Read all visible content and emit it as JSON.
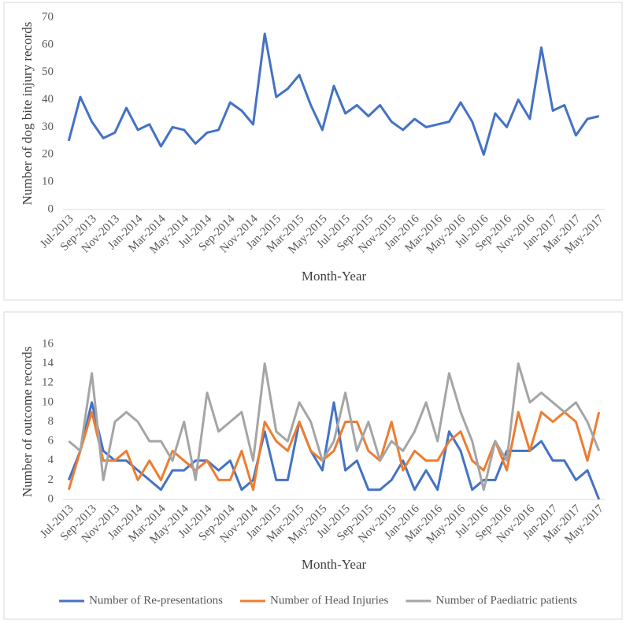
{
  "chart_data": [
    {
      "type": "line",
      "y_label": "Number of dog bite injury records",
      "x_label": "Month-Year",
      "categories": [
        "Jul-2013",
        null,
        "Sep-2013",
        null,
        "Nov-2013",
        null,
        "Jan-2014",
        null,
        "Mar-2014",
        null,
        "May-2014",
        null,
        "Jul-2014",
        null,
        "Sep-2014",
        null,
        "Nov-2014",
        null,
        "Jan-2015",
        null,
        "Mar-2015",
        null,
        "May-2015",
        null,
        "Jul-2015",
        null,
        "Sep-2015",
        null,
        "Nov-2015",
        null,
        "Jan-2016",
        null,
        "Mar-2016",
        null,
        "May-2016",
        null,
        "Jul-2016",
        null,
        "Sep-2016",
        null,
        "Nov-2016",
        null,
        "Jan-2017",
        null,
        "Mar-2017",
        null,
        "May-2017"
      ],
      "series": [
        {
          "color": "#4472c4",
          "values": [
            25,
            41,
            32,
            26,
            28,
            37,
            29,
            31,
            23,
            30,
            29,
            24,
            28,
            29,
            39,
            36,
            31,
            64,
            41,
            44,
            49,
            38,
            29,
            45,
            35,
            38,
            34,
            38,
            32,
            29,
            33,
            30,
            31,
            32,
            39,
            32,
            20,
            35,
            30,
            40,
            33,
            59,
            36,
            38,
            27,
            33,
            34
          ]
        }
      ],
      "ylim": [
        0,
        70
      ],
      "yticks": [
        0,
        10,
        20,
        30,
        40,
        50,
        60,
        70
      ],
      "grid": false
    },
    {
      "type": "line",
      "y_label": "Number of outcome records",
      "x_label": "Month-Year",
      "categories": [
        "Jul-2013",
        null,
        "Sep-2013",
        null,
        "Nov-2013",
        null,
        "Jan-2014",
        null,
        "Mar-2014",
        null,
        "May-2014",
        null,
        "Jul-2014",
        null,
        "Sep-2014",
        null,
        "Nov-2014",
        null,
        "Jan-2015",
        null,
        "Mar-2015",
        null,
        "May-2015",
        null,
        "Jul-2015",
        null,
        "Sep-2015",
        null,
        "Nov-2015",
        null,
        "Jan-2016",
        null,
        "Mar-2016",
        null,
        "May-2016",
        null,
        "Jul-2016",
        null,
        "Sep-2016",
        null,
        "Nov-2016",
        null,
        "Jan-2017",
        null,
        "Mar-2017",
        null,
        "May-2017"
      ],
      "series": [
        {
          "name": "Number of Re-presentations",
          "color": "#4472c4",
          "values": [
            2,
            5,
            10,
            5,
            4,
            4,
            3,
            2,
            1,
            3,
            3,
            4,
            4,
            3,
            4,
            1,
            2,
            7,
            2,
            2,
            8,
            5,
            3,
            10,
            3,
            4,
            1,
            1,
            2,
            4,
            1,
            3,
            1,
            7,
            5,
            1,
            2,
            2,
            5,
            5,
            5,
            6,
            4,
            4,
            2,
            3,
            0
          ]
        },
        {
          "name": "Number of Head Injuries",
          "color": "#ed7d31",
          "values": [
            1,
            5,
            9,
            4,
            4,
            5,
            2,
            4,
            2,
            5,
            4,
            3,
            4,
            2,
            2,
            5,
            1,
            8,
            6,
            5,
            8,
            5,
            4,
            5,
            8,
            8,
            5,
            4,
            8,
            3,
            5,
            4,
            4,
            6,
            7,
            4,
            3,
            6,
            3,
            9,
            5,
            9,
            8,
            9,
            8,
            4,
            9
          ]
        },
        {
          "name": "Number of Paediatric patients",
          "color": "#a5a5a5",
          "values": [
            6,
            5,
            13,
            2,
            8,
            9,
            8,
            6,
            6,
            4,
            8,
            2,
            11,
            7,
            8,
            9,
            4,
            14,
            7,
            6,
            10,
            8,
            4,
            6,
            11,
            5,
            8,
            4,
            6,
            5,
            7,
            10,
            6,
            13,
            9,
            6,
            1,
            6,
            4,
            14,
            10,
            11,
            10,
            9,
            10,
            8,
            5
          ]
        }
      ],
      "ylim": [
        0,
        16
      ],
      "yticks": [
        0,
        2,
        4,
        6,
        8,
        10,
        12,
        14,
        16
      ],
      "grid": false,
      "legend": "bottom"
    }
  ]
}
